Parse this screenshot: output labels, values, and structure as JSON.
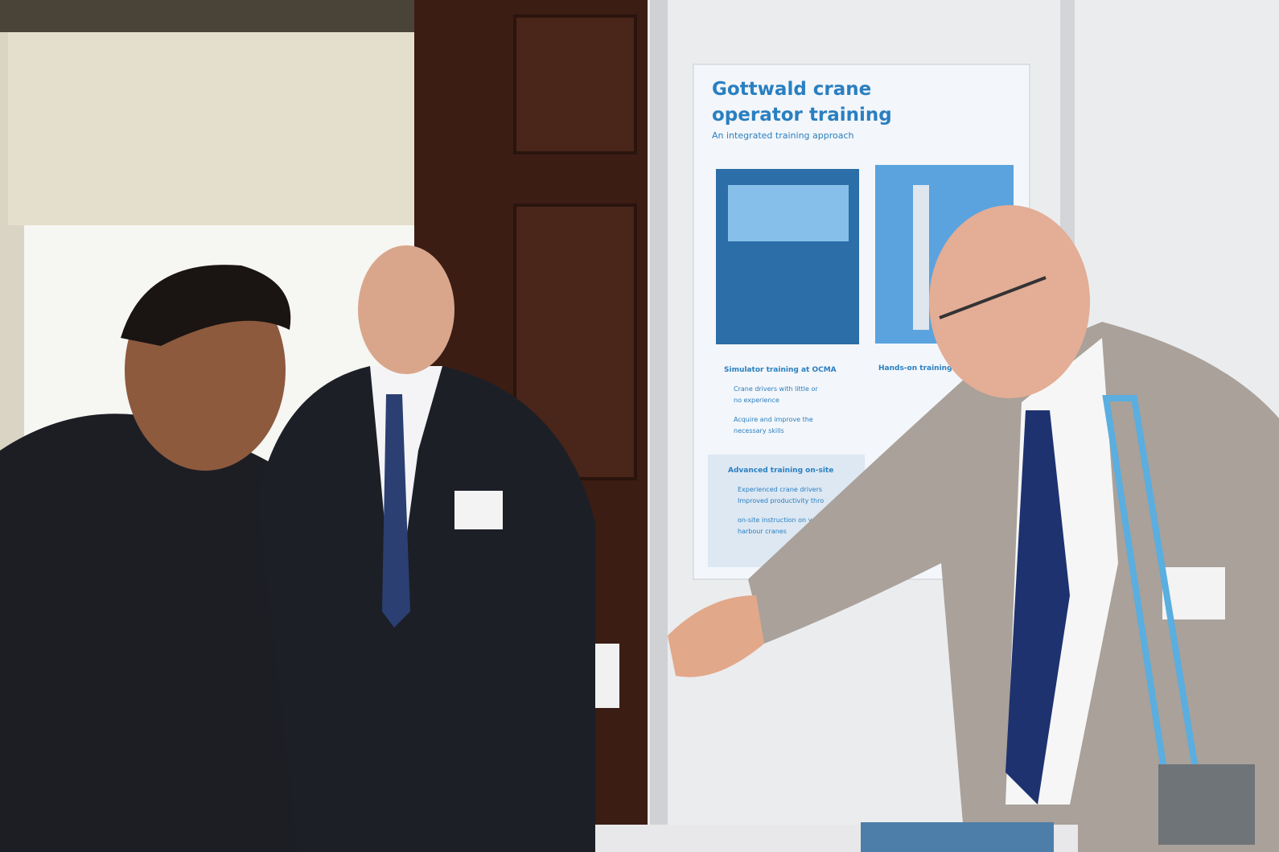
{
  "poster": {
    "title": [
      "Gottwald crane",
      "operator training"
    ],
    "subtitle": "An integrated training approach",
    "sections": [
      {
        "heading": "Simulator training at OCMA",
        "items": [
          "Crane drivers with little or",
          "no experience",
          "Acquire and improve the",
          "necessary skills"
        ]
      },
      {
        "heading": "Hands-on training"
      },
      {
        "heading": "Advanced training on-site",
        "items": [
          "Experienced crane drivers",
          "Improved productivity thro",
          "on-site instruction on yo",
          "harbour cranes"
        ]
      }
    ]
  }
}
